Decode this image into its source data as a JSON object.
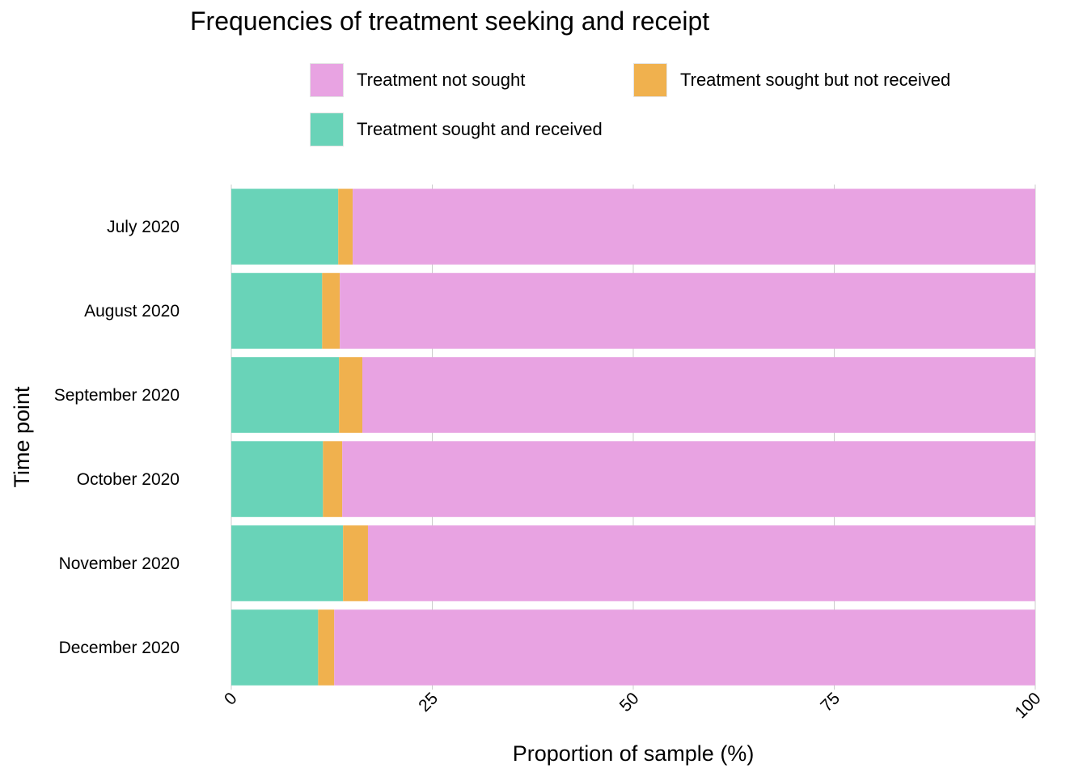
{
  "chart_data": {
    "type": "bar",
    "orientation": "horizontal",
    "stacked": true,
    "title": "Frequencies of treatment seeking and receipt",
    "xlabel": "Proportion of sample (%)",
    "ylabel": "Time point",
    "xlim": [
      0,
      100
    ],
    "xticks": [
      "0",
      "25",
      "50",
      "75",
      "100"
    ],
    "grid": true,
    "legend_position": "top",
    "categories": [
      "July 2020",
      "August 2020",
      "September 2020",
      "October 2020",
      "November 2020",
      "December 2020"
    ],
    "series": [
      {
        "name": "Treatment sought and received",
        "color": "#69D3B8",
        "values": [
          13.3,
          11.3,
          13.4,
          11.4,
          13.9,
          10.8
        ]
      },
      {
        "name": "Treatment sought but not received",
        "color": "#F0B14E",
        "values": [
          1.8,
          2.2,
          2.9,
          2.4,
          3.1,
          2.0
        ]
      },
      {
        "name": "Treatment not sought",
        "color": "#E8A3E2",
        "values": [
          84.9,
          86.5,
          83.7,
          86.2,
          83.0,
          87.2
        ]
      }
    ]
  },
  "legend": {
    "items": [
      {
        "label": "Treatment not sought",
        "color": "#E8A3E2"
      },
      {
        "label": "Treatment sought but not received",
        "color": "#F0B14E"
      },
      {
        "label": "Treatment sought and received",
        "color": "#69D3B8"
      }
    ]
  }
}
